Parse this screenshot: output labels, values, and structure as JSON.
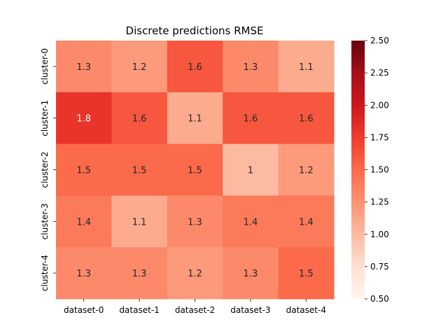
{
  "chart_data": {
    "type": "heatmap",
    "title": "Discrete predictions RMSE",
    "xlabel": "",
    "ylabel": "",
    "x_categories": [
      "dataset-0",
      "dataset-1",
      "dataset-2",
      "dataset-3",
      "dataset-4"
    ],
    "y_categories": [
      "cluster-0",
      "cluster-1",
      "cluster-2",
      "cluster-3",
      "cluster-4"
    ],
    "values": [
      [
        1.3,
        1.2,
        1.6,
        1.3,
        1.1
      ],
      [
        1.8,
        1.6,
        1.1,
        1.6,
        1.6
      ],
      [
        1.5,
        1.5,
        1.5,
        1.0,
        1.2
      ],
      [
        1.4,
        1.1,
        1.3,
        1.4,
        1.4
      ],
      [
        1.3,
        1.3,
        1.2,
        1.3,
        1.5
      ]
    ],
    "annotations": [
      [
        "1.3",
        "1.2",
        "1.6",
        "1.3",
        "1.1"
      ],
      [
        "1.8",
        "1.6",
        "1.1",
        "1.6",
        "1.6"
      ],
      [
        "1.5",
        "1.5",
        "1.5",
        "1",
        "1.2"
      ],
      [
        "1.4",
        "1.1",
        "1.3",
        "1.4",
        "1.4"
      ],
      [
        "1.3",
        "1.3",
        "1.2",
        "1.3",
        "1.5"
      ]
    ],
    "colorbar": {
      "range": [
        0.5,
        2.5
      ],
      "ticks": [
        "0.50",
        "0.75",
        "1.00",
        "1.25",
        "1.50",
        "1.75",
        "2.00",
        "2.25",
        "2.50"
      ],
      "colormap": "Reds"
    },
    "grid": false,
    "legend": "colorbar-right"
  }
}
